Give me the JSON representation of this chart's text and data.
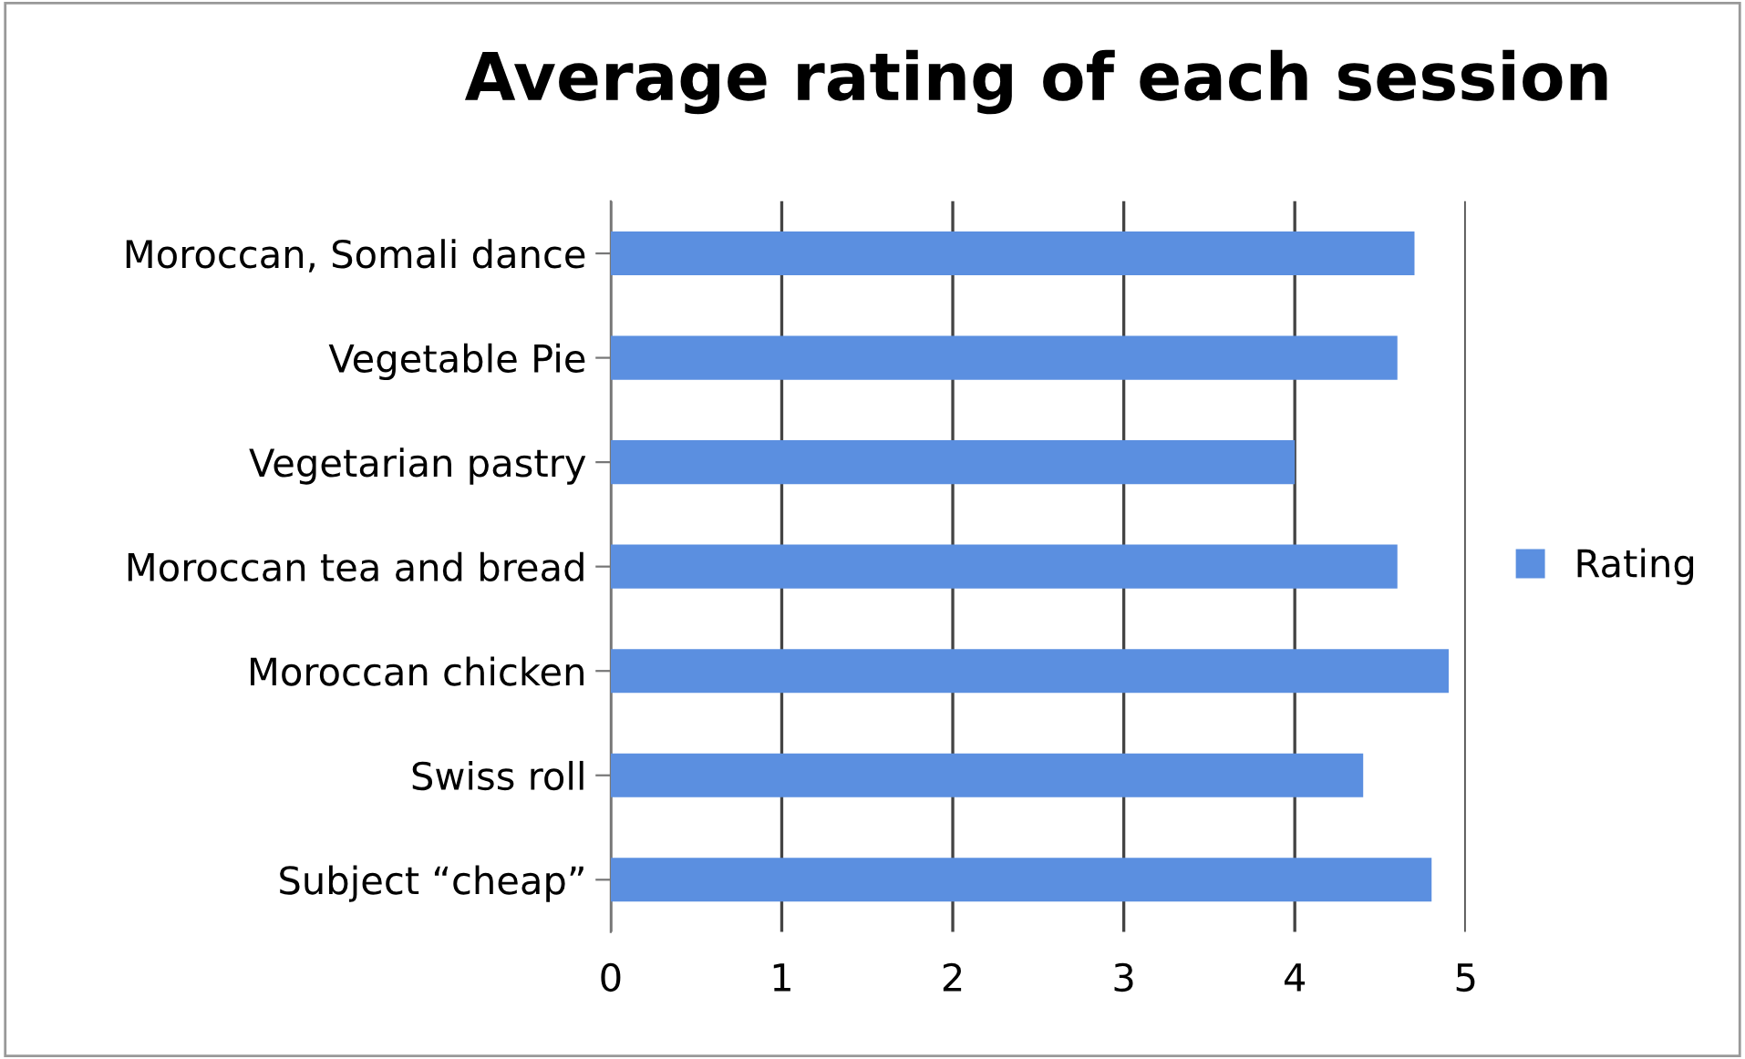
{
  "chart_data": {
    "type": "bar",
    "orientation": "horizontal",
    "title": "Average rating of each session",
    "categories": [
      "Moroccan, Somali dance",
      "Vegetable Pie",
      "Vegetarian pastry",
      "Moroccan tea and bread",
      "Moroccan chicken",
      "Swiss roll",
      "Subject “cheap”"
    ],
    "series": [
      {
        "name": "Rating",
        "color": "#5b8fe0",
        "values": [
          4.7,
          4.6,
          4.0,
          4.6,
          4.9,
          4.4,
          4.8
        ]
      }
    ],
    "xlim": [
      0,
      5
    ],
    "xticks": [
      0,
      1,
      2,
      3,
      4,
      5
    ],
    "grid": "x",
    "legend": "right"
  }
}
